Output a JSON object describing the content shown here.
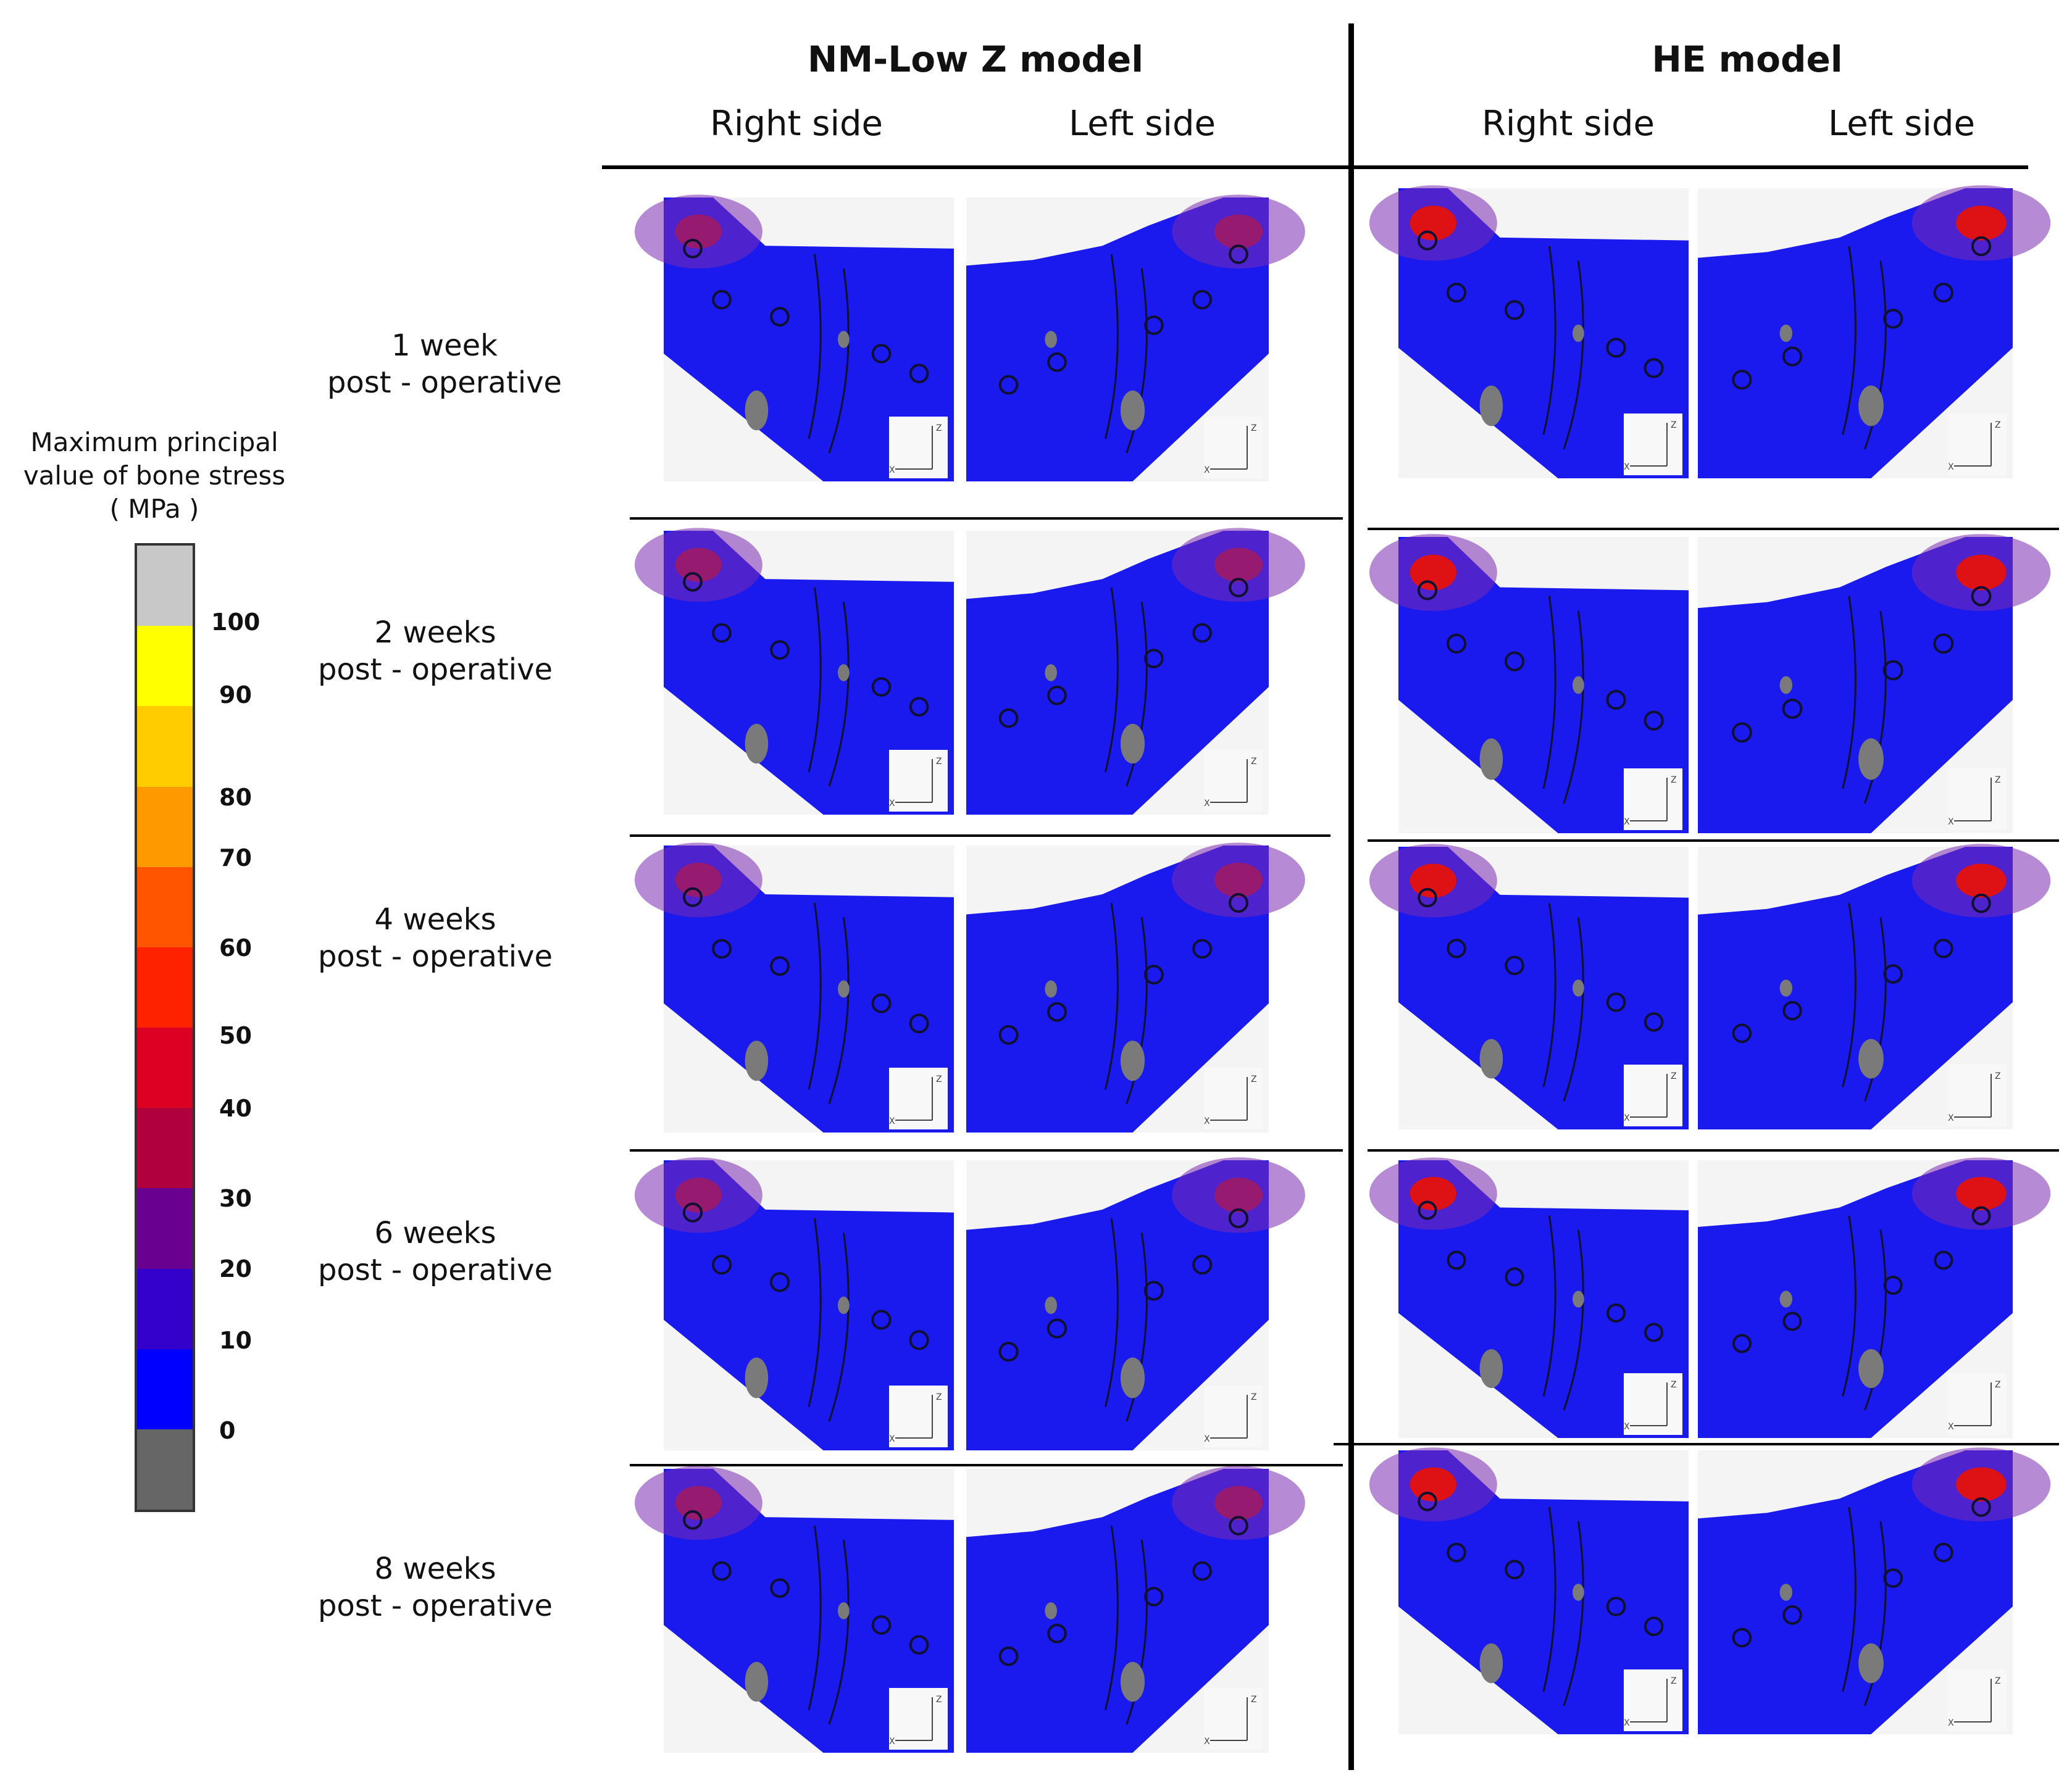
{
  "columns": {
    "nm_title": "NM-Low Z model",
    "he_title": "HE model",
    "nm_right": "Right side",
    "nm_left": "Left side",
    "he_right": "Right side",
    "he_left": "Left side"
  },
  "rows": [
    {
      "line1": "1 week",
      "line2": "post - operative"
    },
    {
      "line1": "2 weeks",
      "line2": "post - operative"
    },
    {
      "line1": "4 weeks",
      "line2": "post - operative"
    },
    {
      "line1": "6 weeks",
      "line2": "post - operative"
    },
    {
      "line1": "8 weeks",
      "line2": "post - operative"
    }
  ],
  "legend": {
    "title_line1": "Maximum principal",
    "title_line2": "value  of bone stress",
    "title_line3": "( MPa )",
    "ticks": [
      "100",
      "90",
      "80",
      "70",
      "60",
      "50",
      "40",
      "30",
      "20",
      "10",
      "0"
    ],
    "colors": [
      "#c8c8c8",
      "#ffff00",
      "#ffcc00",
      "#ff9900",
      "#ff5500",
      "#ff2200",
      "#dd0022",
      "#b0003e",
      "#6a0090",
      "#3300cc",
      "#0000ff",
      "#666666"
    ]
  },
  "axis": {
    "z": "Z",
    "x": "X"
  },
  "colors": {
    "bone_blue": "#1a1aee",
    "bone_gray": "#7a7a7a",
    "stress_purple": "#7a2ab0",
    "stress_red": "#ee1100",
    "panel_bg": "#f4f4f4"
  }
}
